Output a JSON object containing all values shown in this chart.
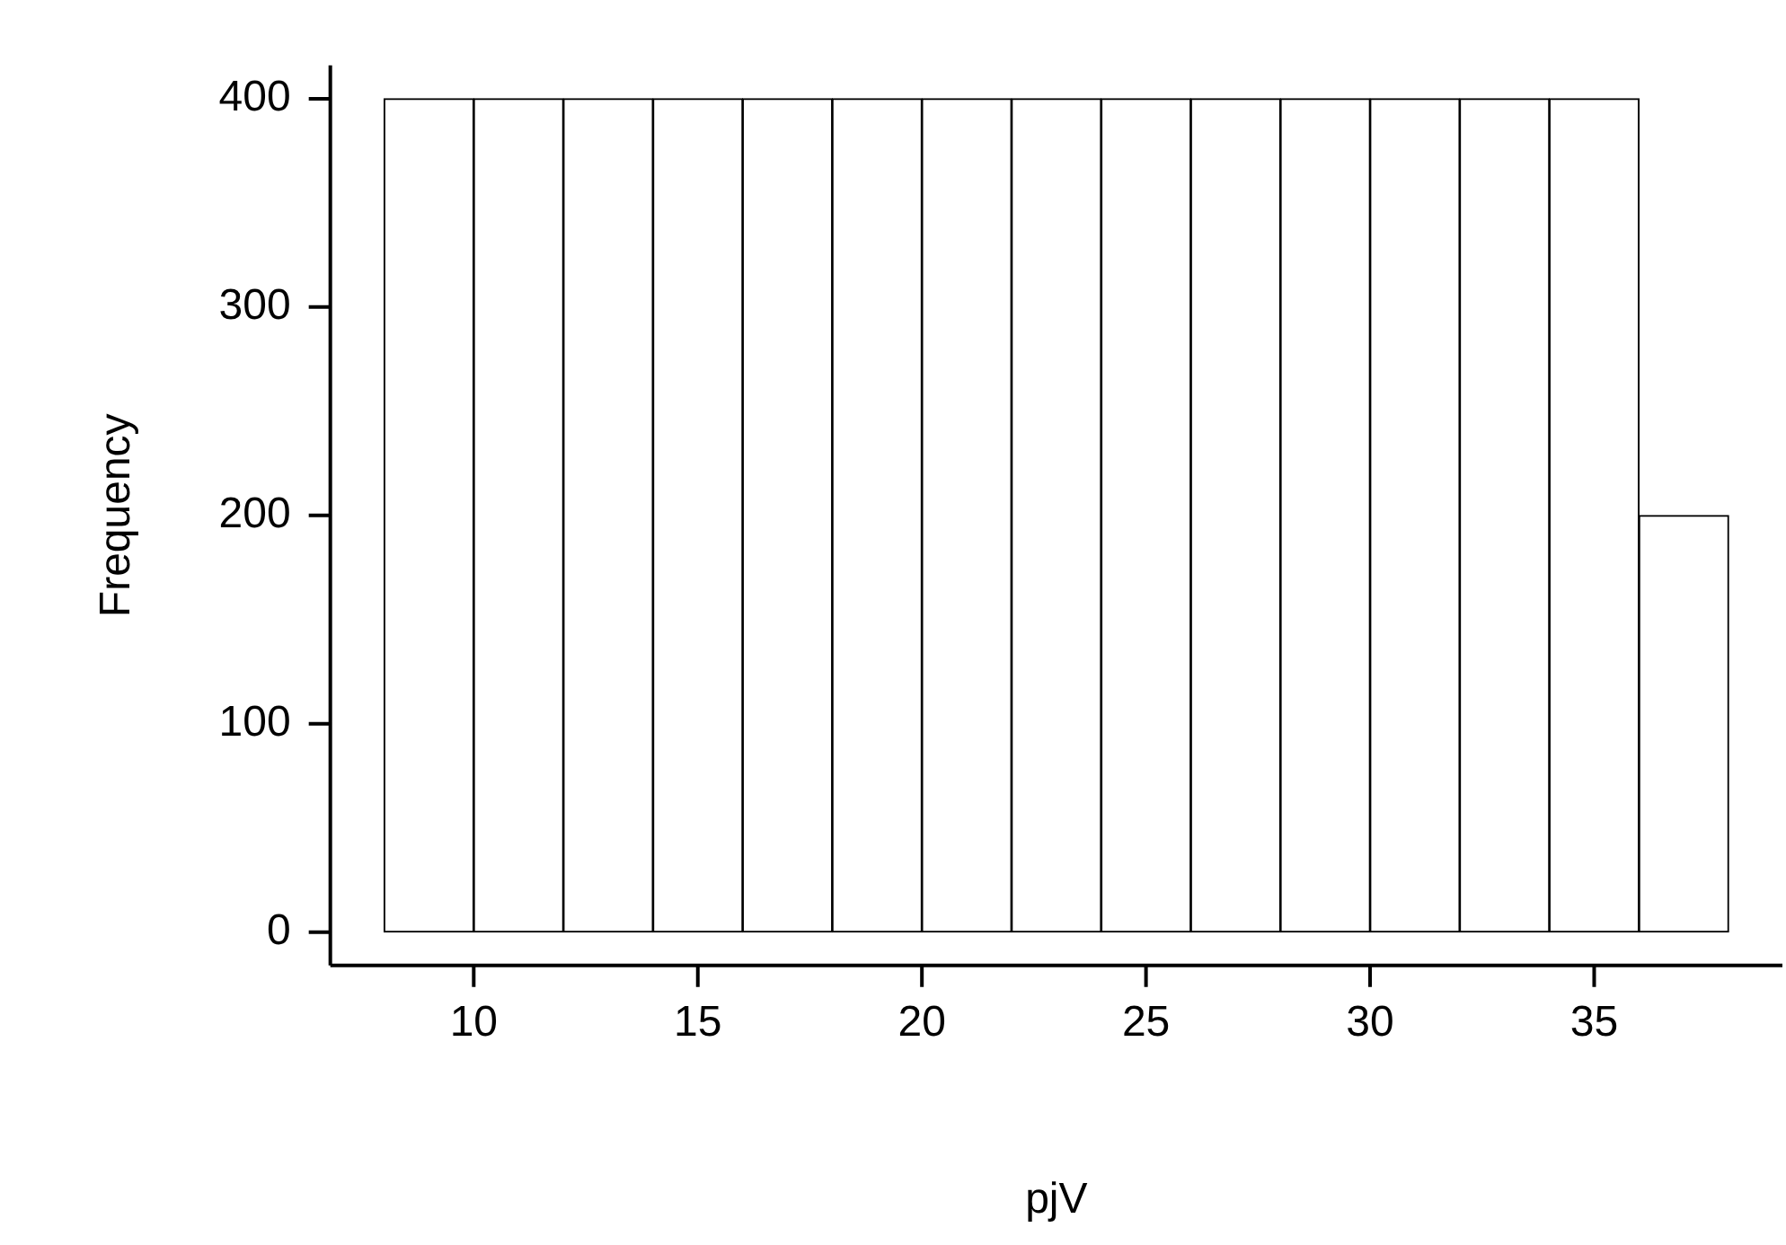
{
  "chart_data": {
    "type": "histogram",
    "xlabel": "pjV",
    "ylabel": "Frequency",
    "bins": [
      8,
      10,
      12,
      14,
      16,
      18,
      20,
      22,
      24,
      26,
      28,
      30,
      32,
      34,
      36,
      38
    ],
    "values": [
      400,
      400,
      400,
      400,
      400,
      400,
      400,
      400,
      400,
      400,
      400,
      400,
      400,
      400,
      200
    ],
    "color": "#ffffff",
    "xlim": [
      6.8,
      39.2
    ],
    "ylim": [
      -16,
      416
    ],
    "xticks": [
      10,
      15,
      20,
      25,
      30,
      35
    ],
    "yticks": [
      0,
      100,
      200,
      300,
      400
    ]
  }
}
